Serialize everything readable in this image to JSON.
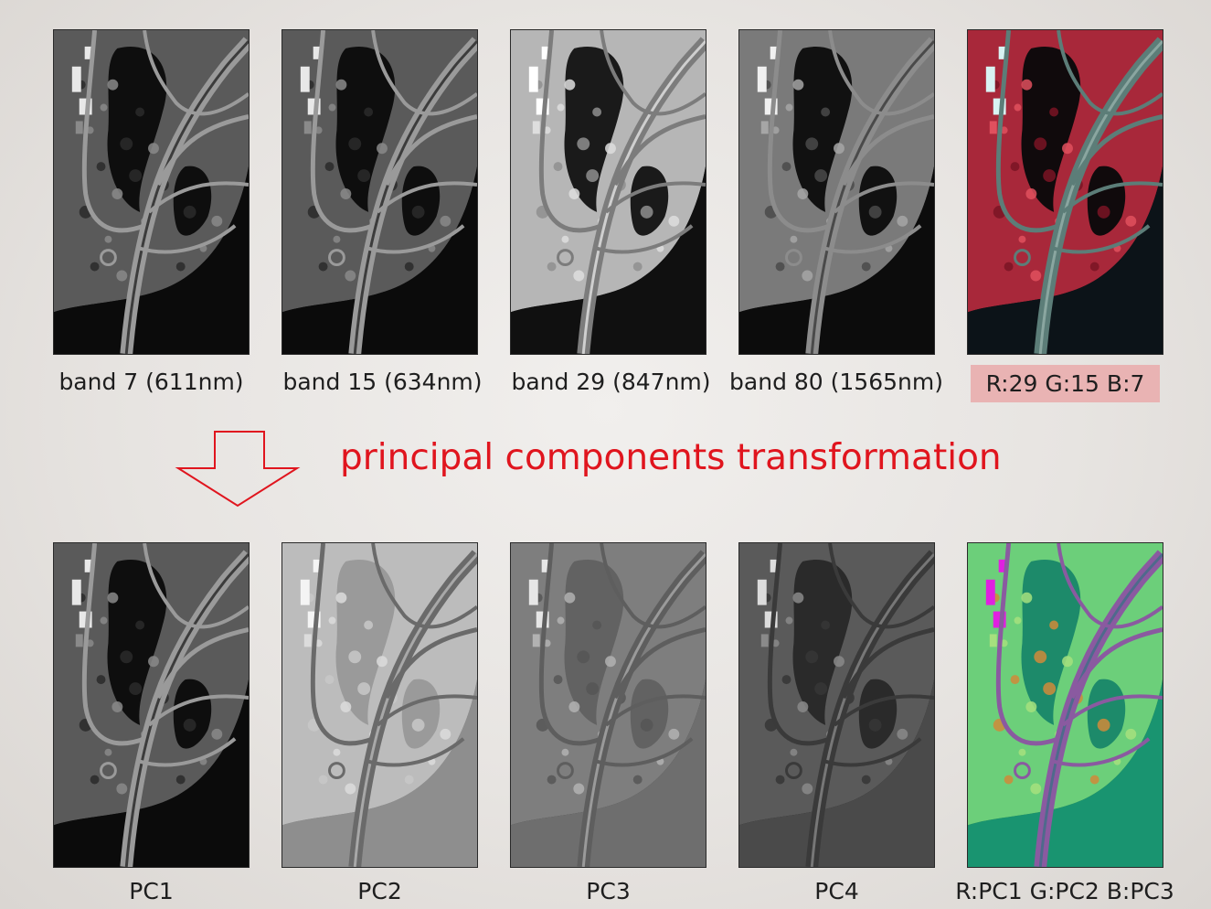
{
  "title": "principal components transformation",
  "top_row": {
    "bands": [
      {
        "label": "band 7 (611nm)",
        "style": "gray-dark"
      },
      {
        "label": "band 15 (634nm)",
        "style": "gray-dark"
      },
      {
        "label": "band 29 (847nm)",
        "style": "gray-bright"
      },
      {
        "label": "band 80 (1565nm)",
        "style": "gray-mid"
      }
    ],
    "composite": {
      "label": "R:29 G:15 B:7",
      "highlight_color": "#e9b3b3",
      "style": "false-color-red"
    }
  },
  "bottom_row": {
    "components": [
      {
        "label": "PC1",
        "style": "gray-dark"
      },
      {
        "label": "PC2",
        "style": "gray-light-water"
      },
      {
        "label": "PC3",
        "style": "gray-mid-water"
      },
      {
        "label": "PC4",
        "style": "gray-dark-water"
      }
    ],
    "composite": {
      "label": "R:PC1 G:PC2 B:PC3",
      "style": "false-color-green"
    }
  },
  "colors": {
    "accent_red": "#e0151e",
    "arrow_outline": "#e0151e"
  },
  "icons": {
    "transform_arrow": "down-arrow-outline-icon"
  }
}
